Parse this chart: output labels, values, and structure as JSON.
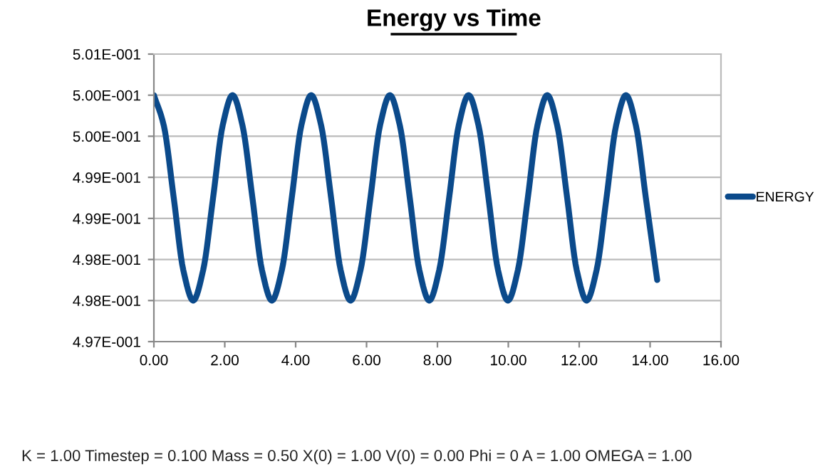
{
  "chart_data": {
    "type": "line",
    "title": "Energy vs Time",
    "x": [
      0,
      0.28,
      0.56,
      0.83,
      1.11,
      1.39,
      1.67,
      1.94,
      2.22,
      2.5,
      2.78,
      3.05,
      3.33,
      3.61,
      3.89,
      4.16,
      4.44,
      4.72,
      5.0,
      5.27,
      5.55,
      5.83,
      6.11,
      6.38,
      6.66,
      6.94,
      7.22,
      7.49,
      7.77,
      8.05,
      8.33,
      8.6,
      8.88,
      9.16,
      9.44,
      9.71,
      9.99,
      10.27,
      10.55,
      10.82,
      11.1,
      11.38,
      11.66,
      11.93,
      12.21,
      12.49,
      12.77,
      13.04,
      13.32,
      13.6,
      13.88,
      14.2
    ],
    "series": [
      {
        "name": "ENERGY",
        "color": "#0b4a8b",
        "values": [
          0.5,
          0.49963,
          0.49875,
          0.49787,
          0.4975,
          0.49787,
          0.49875,
          0.49963,
          0.5,
          0.49963,
          0.49875,
          0.49787,
          0.4975,
          0.49787,
          0.49875,
          0.49963,
          0.5,
          0.49963,
          0.49875,
          0.49787,
          0.4975,
          0.49787,
          0.49875,
          0.49963,
          0.5,
          0.49963,
          0.49875,
          0.49787,
          0.4975,
          0.49787,
          0.49875,
          0.49963,
          0.5,
          0.49963,
          0.49875,
          0.49787,
          0.4975,
          0.49787,
          0.49875,
          0.49963,
          0.5,
          0.49963,
          0.49875,
          0.49787,
          0.4975,
          0.49787,
          0.49875,
          0.49963,
          0.5,
          0.49963,
          0.49875,
          0.49775
        ]
      }
    ],
    "xlim": [
      0,
      16
    ],
    "xticks": [
      {
        "value": 0,
        "label": "0.00"
      },
      {
        "value": 2,
        "label": "2.00"
      },
      {
        "value": 4,
        "label": "4.00"
      },
      {
        "value": 6,
        "label": "6.00"
      },
      {
        "value": 8,
        "label": "8.00"
      },
      {
        "value": 10,
        "label": "10.00"
      },
      {
        "value": 12,
        "label": "12.00"
      },
      {
        "value": 14,
        "label": "14.00"
      },
      {
        "value": 16,
        "label": "16.00"
      }
    ],
    "ylim": [
      0.497,
      0.5005
    ],
    "yticks": [
      {
        "value": 0.497,
        "label": "4.97E-001"
      },
      {
        "value": 0.4975,
        "label": "4.98E-001"
      },
      {
        "value": 0.498,
        "label": "4.98E-001"
      },
      {
        "value": 0.4985,
        "label": "4.99E-001"
      },
      {
        "value": 0.499,
        "label": "4.99E-001"
      },
      {
        "value": 0.4995,
        "label": "5.00E-001"
      },
      {
        "value": 0.5,
        "label": "5.00E-001"
      },
      {
        "value": 0.5005,
        "label": "5.01E-001"
      }
    ],
    "grid": "y",
    "legend": "right",
    "marker": "none",
    "line_style": "solid",
    "annotations": [
      "K = 1.00 Timestep = 0.100 Mass = 0.50 X(0) = 1.00 V(0) = 0.00 Phi = 0 A = 1.00 OMEGA = 1.00"
    ]
  }
}
